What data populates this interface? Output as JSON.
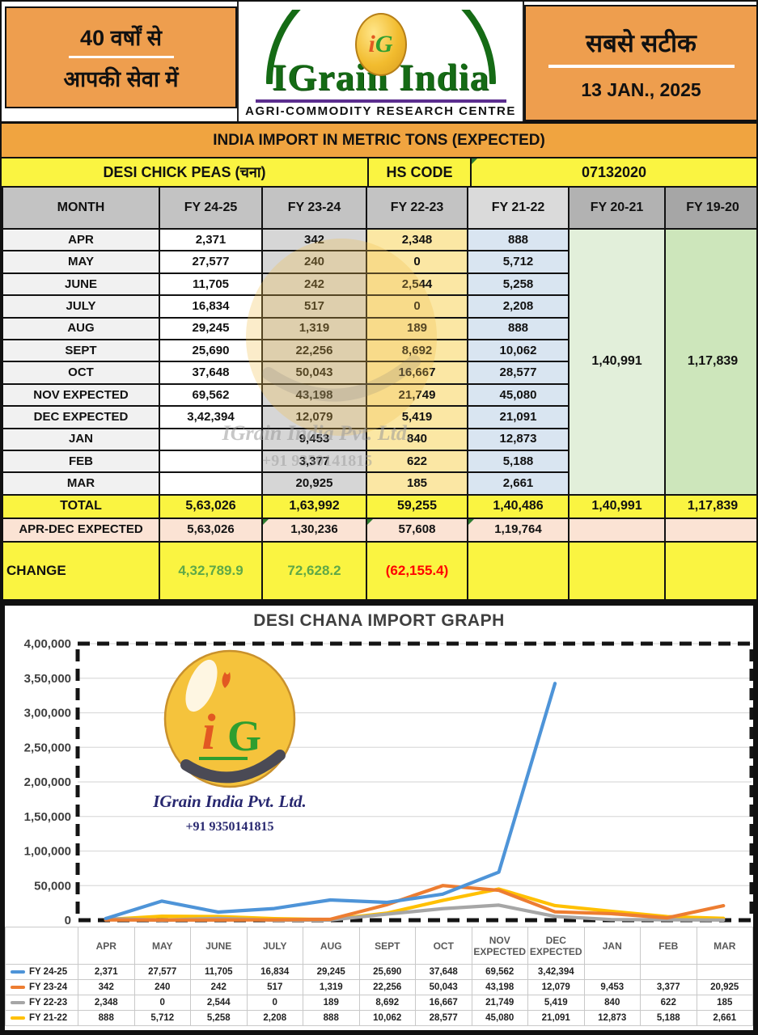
{
  "header": {
    "left_line1": "40 वर्षों से",
    "left_line2": "आपकी सेवा में",
    "brand": "IGrain India",
    "brand_sub": "AGRI-COMMODITY RESEARCH CENTRE",
    "logo_monogram_i": "i",
    "logo_monogram_g": "G",
    "right_line1": "सबसे सटीक",
    "date": "13 JAN., 2025"
  },
  "title_band": "INDIA IMPORT IN METRIC TONS (EXPECTED)",
  "subtitle": {
    "commodity": "DESI CHICK PEAS (चना)",
    "hs_code_label": "HS CODE",
    "hs_code_value": "07132020"
  },
  "watermark": {
    "line1": "IGrain India Pvt. Ltd.",
    "line2": "+91 9350141815"
  },
  "table": {
    "columns": [
      "MONTH",
      "FY 24-25",
      "FY 23-24",
      "FY 22-23",
      "FY 21-22",
      "FY 20-21",
      "FY 19-20"
    ],
    "rows": [
      {
        "month": "APR",
        "fy2425": "2,371",
        "fy2324": "342",
        "fy2223": "2,348",
        "fy2122": "888"
      },
      {
        "month": "MAY",
        "fy2425": "27,577",
        "fy2324": "240",
        "fy2223": "0",
        "fy2122": "5,712"
      },
      {
        "month": "JUNE",
        "fy2425": "11,705",
        "fy2324": "242",
        "fy2223": "2,544",
        "fy2122": "5,258"
      },
      {
        "month": "JULY",
        "fy2425": "16,834",
        "fy2324": "517",
        "fy2223": "0",
        "fy2122": "2,208"
      },
      {
        "month": "AUG",
        "fy2425": "29,245",
        "fy2324": "1,319",
        "fy2223": "189",
        "fy2122": "888"
      },
      {
        "month": "SEPT",
        "fy2425": "25,690",
        "fy2324": "22,256",
        "fy2223": "8,692",
        "fy2122": "10,062"
      },
      {
        "month": "OCT",
        "fy2425": "37,648",
        "fy2324": "50,043",
        "fy2223": "16,667",
        "fy2122": "28,577"
      },
      {
        "month": "NOV EXPECTED",
        "fy2425": "69,562",
        "fy2324": "43,198",
        "fy2223": "21,749",
        "fy2122": "45,080"
      },
      {
        "month": "DEC EXPECTED",
        "fy2425": "3,42,394",
        "fy2324": "12,079",
        "fy2223": "5,419",
        "fy2122": "21,091"
      },
      {
        "month": "JAN",
        "fy2425": "",
        "fy2324": "9,453",
        "fy2223": "840",
        "fy2122": "12,873"
      },
      {
        "month": "FEB",
        "fy2425": "",
        "fy2324": "3,377",
        "fy2223": "622",
        "fy2122": "5,188"
      },
      {
        "month": "MAR",
        "fy2425": "",
        "fy2324": "20,925",
        "fy2223": "185",
        "fy2122": "2,661"
      }
    ],
    "fy2021_merged_total": "1,40,991",
    "fy1920_merged_total": "1,17,839",
    "total_row": {
      "label": "TOTAL",
      "values": [
        "5,63,026",
        "1,63,992",
        "59,255",
        "1,40,486",
        "1,40,991",
        "1,17,839"
      ]
    },
    "apr_dec_row": {
      "label": "APR-DEC EXPECTED",
      "values": [
        "5,63,026",
        "1,30,236",
        "57,608",
        "1,19,764",
        "",
        ""
      ]
    },
    "change_row": {
      "label": "CHANGE",
      "values": [
        "4,32,789.9",
        "72,628.2",
        "(62,155.4)",
        "",
        "",
        ""
      ]
    }
  },
  "chart_data": {
    "type": "line",
    "title": "DESI CHANA IMPORT GRAPH",
    "xlabel": "",
    "ylabel": "",
    "ylim": [
      0,
      400000
    ],
    "grid": true,
    "legend_position": "table-left",
    "y_ticks_labels": [
      "0",
      "50,000",
      "1,00,000",
      "1,50,000",
      "2,00,000",
      "2,50,000",
      "3,00,000",
      "3,50,000",
      "4,00,000"
    ],
    "categories": [
      "APR",
      "MAY",
      "JUNE",
      "JULY",
      "AUG",
      "SEPT",
      "OCT",
      "NOV EXPECTED",
      "DEC EXPECTED",
      "JAN",
      "FEB",
      "MAR"
    ],
    "series": [
      {
        "name": "FY 24-25",
        "color": "#4E94D8",
        "values": [
          2371,
          27577,
          11705,
          16834,
          29245,
          25690,
          37648,
          69562,
          342394,
          null,
          null,
          null
        ],
        "display": [
          "2,371",
          "27,577",
          "11,705",
          "16,834",
          "29,245",
          "25,690",
          "37,648",
          "69,562",
          "3,42,394",
          "",
          "",
          ""
        ]
      },
      {
        "name": "FY 23-24",
        "color": "#ED7D31",
        "values": [
          342,
          240,
          242,
          517,
          1319,
          22256,
          50043,
          43198,
          12079,
          9453,
          3377,
          20925
        ],
        "display": [
          "342",
          "240",
          "242",
          "517",
          "1,319",
          "22,256",
          "50,043",
          "43,198",
          "12,079",
          "9,453",
          "3,377",
          "20,925"
        ]
      },
      {
        "name": "FY 22-23",
        "color": "#A6A6A6",
        "values": [
          2348,
          0,
          2544,
          0,
          189,
          8692,
          16667,
          21749,
          5419,
          840,
          622,
          185
        ],
        "display": [
          "2,348",
          "0",
          "2,544",
          "0",
          "189",
          "8,692",
          "16,667",
          "21,749",
          "5,419",
          "840",
          "622",
          "185"
        ]
      },
      {
        "name": "FY 21-22",
        "color": "#FFC000",
        "values": [
          888,
          5712,
          5258,
          2208,
          888,
          10062,
          28577,
          45080,
          21091,
          12873,
          5188,
          2661
        ],
        "display": [
          "888",
          "5,712",
          "5,258",
          "2,208",
          "888",
          "10,062",
          "28,577",
          "45,080",
          "21,091",
          "12,873",
          "5,188",
          "2,661"
        ]
      }
    ],
    "logo_text1": "IGrain India Pvt. Ltd.",
    "logo_text2": "+91 9350141815"
  },
  "colors": {
    "header_orange": "#EE9E4E",
    "band_orange": "#F0A440",
    "band_yellow": "#FAF441",
    "brand_green": "#156B15",
    "brand_purple": "#5B2D8E",
    "change_positive": "#5FA848",
    "change_negative": "#FF0000",
    "col_fy2324": "#D6D6D6",
    "col_fy2223": "#FBE7A4",
    "col_fy2122": "#D9E5F1",
    "col_fy2021": "#E2EFDA",
    "col_fy1920": "#CDE6BB",
    "aprdec_pink": "#FBE3D4"
  }
}
